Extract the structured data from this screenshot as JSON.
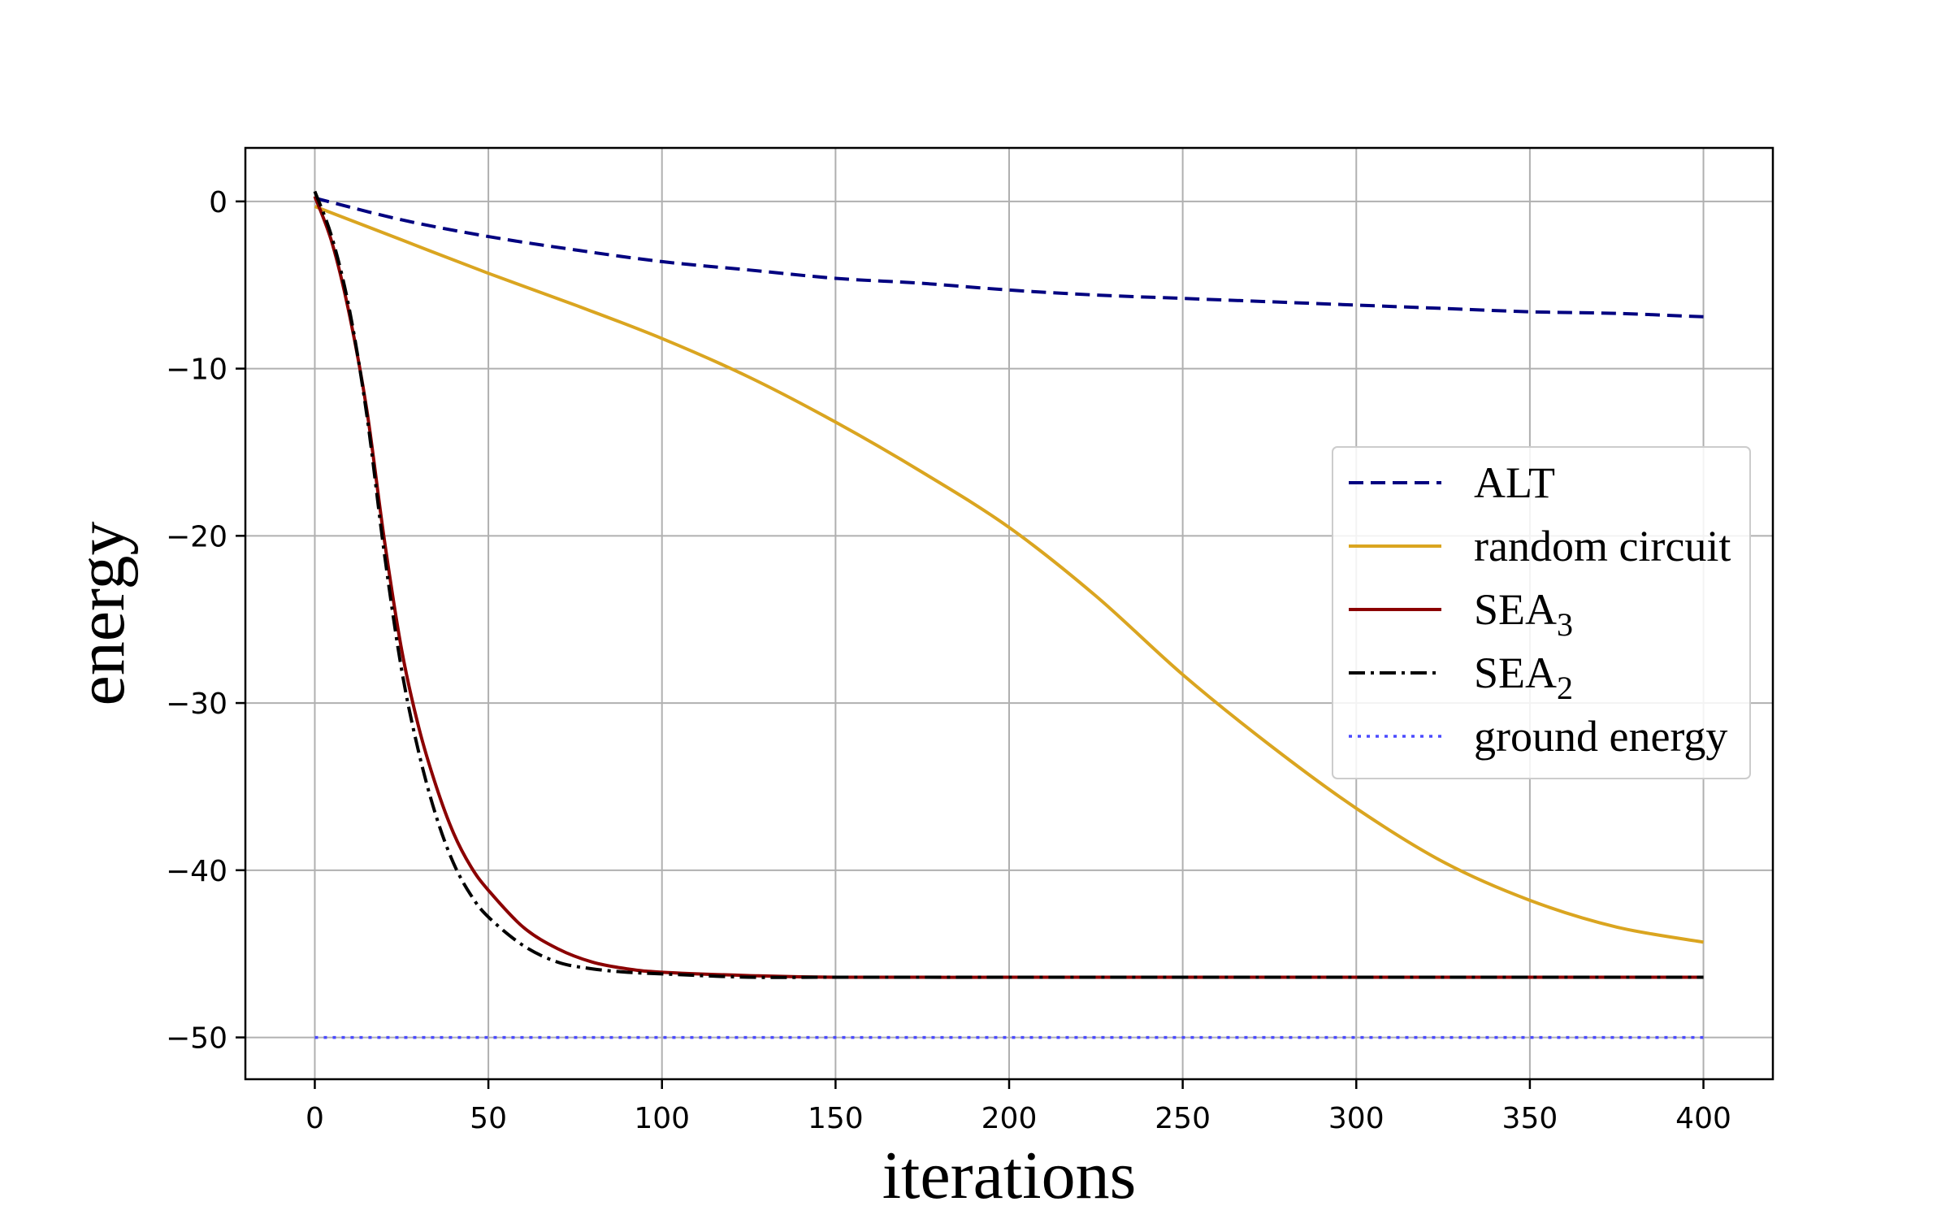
{
  "chart_data": {
    "type": "line",
    "title": "",
    "xlabel": "iterations",
    "ylabel": "energy",
    "xlim": [
      -20,
      420
    ],
    "ylim": [
      -52.5,
      3.2
    ],
    "xticks": [
      0,
      50,
      100,
      150,
      200,
      250,
      300,
      350,
      400
    ],
    "yticks": [
      0,
      -10,
      -20,
      -30,
      -40,
      -50
    ],
    "xtick_labels": [
      "0",
      "50",
      "100",
      "150",
      "200",
      "250",
      "300",
      "350",
      "400"
    ],
    "ytick_labels": [
      "0",
      "−10",
      "−20",
      "−30",
      "−40",
      "−50"
    ],
    "grid": true,
    "legend_position": "center-right",
    "series": [
      {
        "name": "ALT",
        "color": "#000080",
        "style": "dashed",
        "x": [
          0,
          25,
          50,
          75,
          100,
          125,
          150,
          175,
          200,
          225,
          250,
          275,
          300,
          325,
          350,
          375,
          400
        ],
        "y": [
          0.2,
          -1.1,
          -2.1,
          -2.9,
          -3.6,
          -4.1,
          -4.6,
          -4.9,
          -5.3,
          -5.6,
          -5.8,
          -6.0,
          -6.2,
          -6.4,
          -6.6,
          -6.7,
          -6.9
        ]
      },
      {
        "name": "random circuit",
        "color": "#DAA520",
        "style": "solid",
        "x": [
          0,
          25,
          50,
          75,
          100,
          125,
          150,
          175,
          200,
          225,
          250,
          275,
          300,
          325,
          350,
          375,
          400
        ],
        "y": [
          -0.3,
          -2.3,
          -4.3,
          -6.2,
          -8.2,
          -10.5,
          -13.2,
          -16.2,
          -19.5,
          -23.6,
          -28.3,
          -32.5,
          -36.3,
          -39.5,
          -41.8,
          -43.4,
          -44.3
        ]
      },
      {
        "name_main": "SEA",
        "name_sub": "3",
        "color": "#8B0000",
        "style": "solid",
        "x": [
          0,
          5,
          10,
          15,
          20,
          25,
          30,
          35,
          40,
          45,
          50,
          60,
          70,
          80,
          90,
          100,
          125,
          150,
          200,
          250,
          300,
          350,
          400
        ],
        "y": [
          0.3,
          -2.5,
          -6.8,
          -12.5,
          -20.2,
          -26.8,
          -31.5,
          -35.0,
          -37.8,
          -39.8,
          -41.2,
          -43.4,
          -44.7,
          -45.5,
          -45.9,
          -46.1,
          -46.3,
          -46.4,
          -46.4,
          -46.4,
          -46.4,
          -46.4,
          -46.4
        ]
      },
      {
        "name_main": "SEA",
        "name_sub": "2",
        "color": "#000000",
        "style": "dashdot",
        "x": [
          0,
          5,
          10,
          15,
          20,
          25,
          30,
          35,
          40,
          45,
          50,
          60,
          70,
          80,
          90,
          100,
          125,
          150,
          200,
          250,
          300,
          350,
          400
        ],
        "y": [
          0.6,
          -2.2,
          -6.5,
          -12.8,
          -21.0,
          -28.0,
          -33.0,
          -36.8,
          -39.6,
          -41.5,
          -42.8,
          -44.5,
          -45.5,
          -45.9,
          -46.1,
          -46.2,
          -46.4,
          -46.4,
          -46.4,
          -46.4,
          -46.4,
          -46.4,
          -46.4
        ]
      },
      {
        "name": "ground energy",
        "color": "#4B4BFF",
        "style": "dotted",
        "x": [
          0,
          400
        ],
        "y": [
          -50.0,
          -50.0
        ]
      }
    ]
  }
}
